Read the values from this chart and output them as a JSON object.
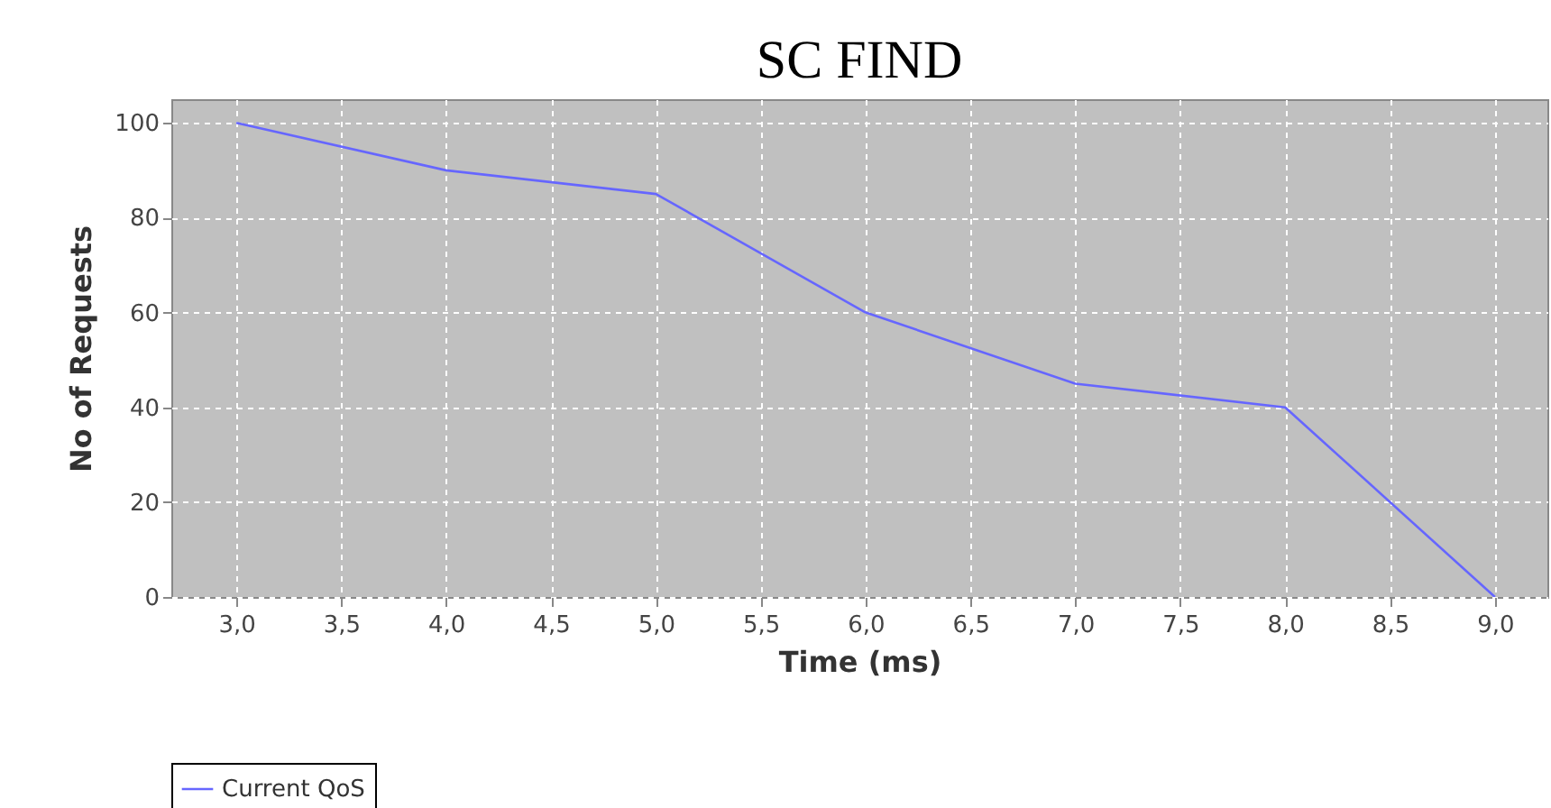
{
  "chart_data": {
    "type": "line",
    "title": "SC FIND",
    "xlabel": "Time (ms)",
    "ylabel": "No of Requests",
    "x": [
      3,
      4,
      5,
      6,
      7,
      8,
      9
    ],
    "series": [
      {
        "name": "Current QoS",
        "color": "#6666ff",
        "values": [
          100,
          90,
          85,
          60,
          45,
          40,
          0
        ]
      }
    ],
    "xlim": [
      2.69,
      9.25
    ],
    "ylim": [
      0,
      105
    ],
    "xticks": [
      {
        "value": 3,
        "label": "3,0"
      },
      {
        "value": 3.5,
        "label": "3,5"
      },
      {
        "value": 4,
        "label": "4,0"
      },
      {
        "value": 4.5,
        "label": "4,5"
      },
      {
        "value": 5,
        "label": "5,0"
      },
      {
        "value": 5.5,
        "label": "5,5"
      },
      {
        "value": 6,
        "label": "6,0"
      },
      {
        "value": 6.5,
        "label": "6,5"
      },
      {
        "value": 7,
        "label": "7,0"
      },
      {
        "value": 7.5,
        "label": "7,5"
      },
      {
        "value": 8,
        "label": "8,0"
      },
      {
        "value": 8.5,
        "label": "8,5"
      },
      {
        "value": 9,
        "label": "9,0"
      }
    ],
    "yticks": [
      0,
      20,
      40,
      60,
      80,
      100
    ],
    "grid": true,
    "legend": "bottom"
  }
}
